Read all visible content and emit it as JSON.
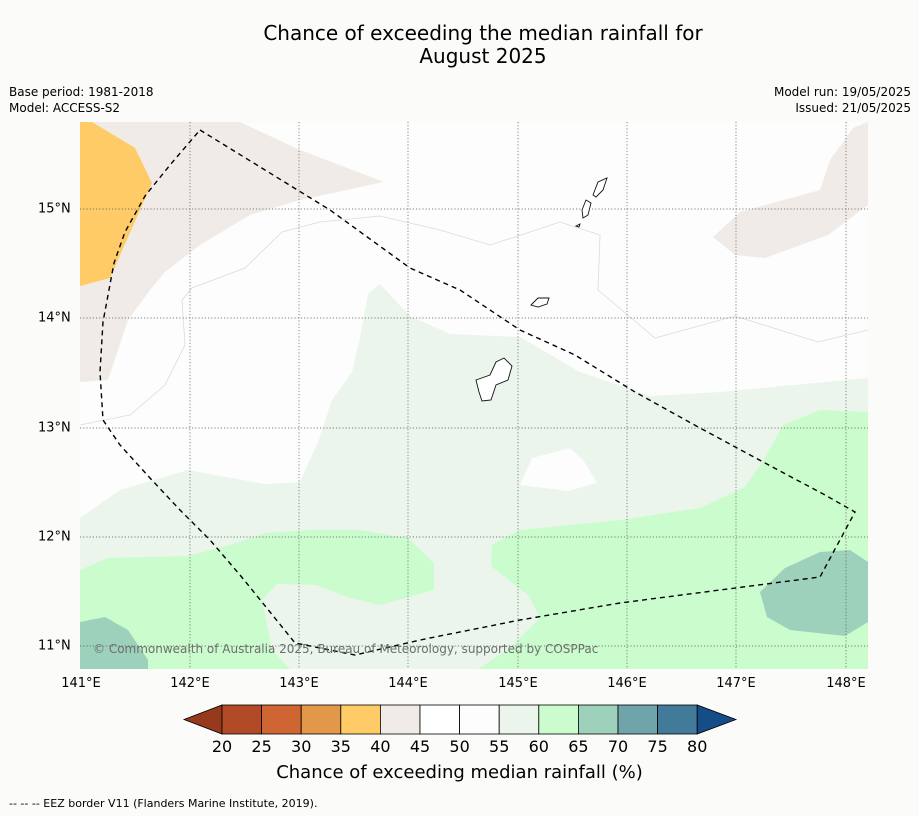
{
  "title": {
    "line1": "Chance of exceeding the median rainfall for",
    "line2": "August 2025"
  },
  "meta": {
    "base_period": "Base period: 1981-2018",
    "model": "Model: ACCESS-S2",
    "model_run": "Model run: 19/05/2025",
    "issued": "Issued: 21/05/2025"
  },
  "axes": {
    "x_ticks": [
      "141°E",
      "142°E",
      "143°E",
      "144°E",
      "145°E",
      "146°E",
      "147°E",
      "148°E"
    ],
    "y_ticks": [
      "15°N",
      "14°N",
      "13°N",
      "12°N",
      "11°N"
    ]
  },
  "copyright": "© Commonwealth of Australia 2025, Bureau of Meteorology, supported by COSPPac",
  "colorbar": {
    "title": "Chance of exceeding median rainfall (%)",
    "labels": [
      "20",
      "25",
      "30",
      "35",
      "40",
      "45",
      "50",
      "55",
      "60",
      "65",
      "70",
      "75",
      "80"
    ],
    "colors": [
      "#b24a27",
      "#ce6533",
      "#e29749",
      "#fecb66",
      "#f0ebe6",
      "#ffffff",
      "#fdfdfd",
      "#ebf5ec",
      "#cbfccd",
      "#9dd1bb",
      "#6fa5aa",
      "#427b99"
    ],
    "under_color": "#96391d",
    "over_color": "#164d88"
  },
  "footnote": "-- -- -- EEZ border V11 (Flanders Marine Institute, 2019)."
}
